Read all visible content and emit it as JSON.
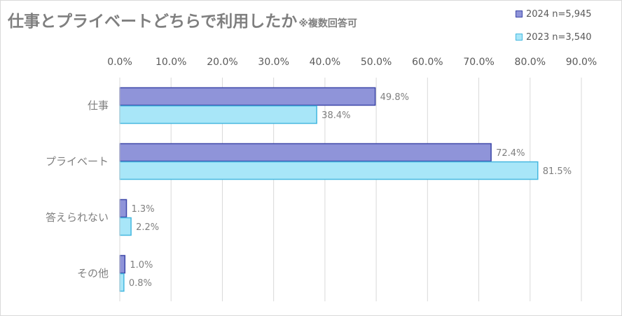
{
  "title": "仕事とプライベートどちらで利用したか",
  "title_note": "※複数回答可",
  "chart_data": {
    "type": "bar",
    "orientation": "horizontal",
    "categories": [
      "仕事",
      "プライベート",
      "答えられない",
      "その他"
    ],
    "series": [
      {
        "name": "2024 n=5,945",
        "values": [
          49.8,
          72.4,
          1.3,
          1.0
        ],
        "labels": [
          "49.8%",
          "72.4%",
          "1.3%",
          "1.0%"
        ],
        "color": "#8f94d9",
        "border": "#3c46a8"
      },
      {
        "name": "2023 n=3,540",
        "values": [
          38.4,
          81.5,
          2.2,
          0.8
        ],
        "labels": [
          "38.4%",
          "81.5%",
          "2.2%",
          "0.8%"
        ],
        "color": "#a8e6f8",
        "border": "#45b8e0"
      }
    ],
    "xlim": [
      0,
      90
    ],
    "xticks": [
      0,
      10,
      20,
      30,
      40,
      50,
      60,
      70,
      80,
      90
    ],
    "xtick_labels": [
      "0.0%",
      "10.0%",
      "20.0%",
      "30.0%",
      "40.0%",
      "50.0%",
      "60.0%",
      "70.0%",
      "80.0%",
      "90.0%"
    ],
    "grid": true,
    "legend_position": "top-right"
  }
}
